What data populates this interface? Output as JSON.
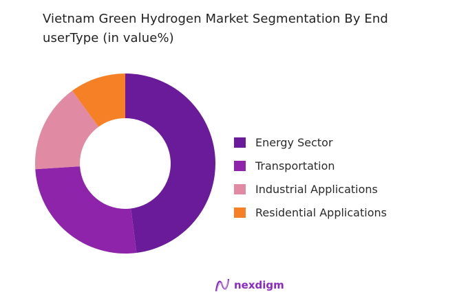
{
  "chart_data": {
    "type": "pie",
    "subtype": "donut",
    "title": "Vietnam Green Hydrogen  Market Segmentation By End userType (in value%)",
    "categories": [
      "Energy Sector",
      "Transportation",
      "Industrial Applications",
      "Residential Applications"
    ],
    "values": [
      48,
      26,
      16,
      10
    ],
    "colors": [
      "#6a1b9a",
      "#8e24aa",
      "#e08aa3",
      "#f58025"
    ],
    "legend_position": "right",
    "start_angle_deg": 0,
    "direction": "clockwise"
  },
  "header": {
    "title_line1": "Vietnam Green Hydrogen  Market Segmentation By End",
    "title_line2": "userType (in value%)"
  },
  "legend": {
    "items": [
      {
        "label": "Energy Sector",
        "color": "#6a1b9a"
      },
      {
        "label": "Transportation",
        "color": "#8e24aa"
      },
      {
        "label": "Industrial Applications",
        "color": "#e08aa3"
      },
      {
        "label": "Residential Applications",
        "color": "#f58025"
      }
    ]
  },
  "brand": {
    "name": "nexdigm",
    "icon": "nexdigm-wave-logo-icon",
    "color": "#8b2ac0"
  }
}
